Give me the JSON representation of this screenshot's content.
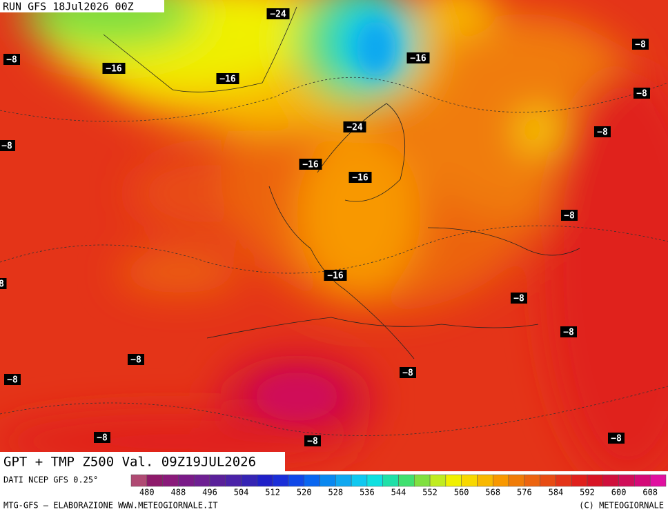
{
  "header": {
    "run": "RUN GFS 18Jul2026 00Z"
  },
  "title": "GPT + TMP Z500 Val. 09Z19JUL2026",
  "source": "DATI NCEP GFS 0.25°",
  "colorbar": {
    "colors": [
      "#b04a73",
      "#8e1a6a",
      "#8a1a7a",
      "#7a1a88",
      "#6e1f92",
      "#5a209a",
      "#4a22a8",
      "#3524b4",
      "#2020c8",
      "#1a2ed8",
      "#1048e8",
      "#0a66f0",
      "#0a88f0",
      "#10a8f0",
      "#10c8f0",
      "#10e0e0",
      "#20e0a8",
      "#40e070",
      "#80e040",
      "#c0ec20",
      "#f0f000",
      "#f8d800",
      "#f8b800",
      "#f89800",
      "#f07c08",
      "#ec6410",
      "#e84c14",
      "#e43418",
      "#e0201c",
      "#d81424",
      "#d0103c",
      "#d00e58",
      "#d40a78",
      "#e010a0"
    ],
    "labels": [
      480,
      488,
      496,
      504,
      512,
      520,
      528,
      536,
      544,
      552,
      560,
      568,
      576,
      584,
      592,
      600,
      608
    ]
  },
  "contour_labels": [
    "−24",
    "−8",
    "−16",
    "−16",
    "−16",
    "−8",
    "−8",
    "−24",
    "−8",
    "−8",
    "−16",
    "−16",
    "−8",
    "−16",
    "8",
    "−8",
    "−8",
    "−8",
    "−8",
    "−8",
    "−8",
    "−8",
    "−8"
  ],
  "footer": {
    "credit": "MTG-GFS — ELABORAZIONE WWW.METEOGIORNALE.IT",
    "copyright": "(C) METEOGIORNALE"
  }
}
